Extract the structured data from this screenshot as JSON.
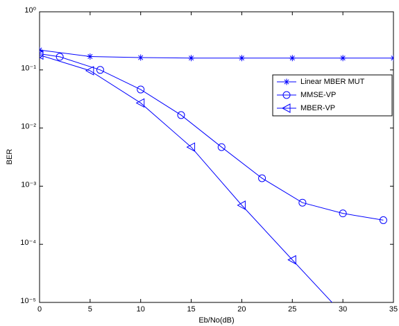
{
  "chart_data": {
    "type": "line",
    "log_y": true,
    "x_label": "Eb/No(dB)",
    "y_label": "BER",
    "xlim": [
      0,
      35
    ],
    "xticks": [
      0,
      5,
      10,
      15,
      20,
      25,
      30,
      35
    ],
    "ylim": [
      1e-05,
      1
    ],
    "yticks": [
      {
        "value": 1e-05,
        "label": "10⁻⁵"
      },
      {
        "value": 0.0001,
        "label": "10⁻⁴"
      },
      {
        "value": 0.001,
        "label": "10⁻³"
      },
      {
        "value": 0.01,
        "label": "10⁻²"
      },
      {
        "value": 0.1,
        "label": "10⁻¹"
      },
      {
        "value": 1,
        "label": "10⁰"
      }
    ],
    "legend": "upper right",
    "series": [
      {
        "name": "Linear MBER MUT",
        "color": "#0000ff",
        "marker": "star",
        "x": [
          0,
          5,
          10,
          15,
          20,
          25,
          30,
          35
        ],
        "values": [
          0.22,
          0.17,
          0.163,
          0.16,
          0.16,
          0.16,
          0.16,
          0.16
        ]
      },
      {
        "name": "MMSE-VP",
        "color": "#0000ff",
        "marker": "circle",
        "x": [
          0,
          2,
          6,
          10,
          14,
          18,
          22,
          26,
          30,
          34
        ],
        "values": [
          0.19,
          0.168,
          0.1,
          0.046,
          0.0167,
          0.0047,
          0.00137,
          0.00052,
          0.00034,
          0.00026
        ]
      },
      {
        "name": "MBER-VP",
        "color": "#0000ff",
        "marker": "triangle-left",
        "x": [
          0,
          5,
          10,
          15,
          20,
          25,
          30
        ],
        "values": [
          0.18,
          0.097,
          0.027,
          0.0047,
          0.00047,
          5.4e-05,
          6.3e-06
        ]
      }
    ]
  }
}
